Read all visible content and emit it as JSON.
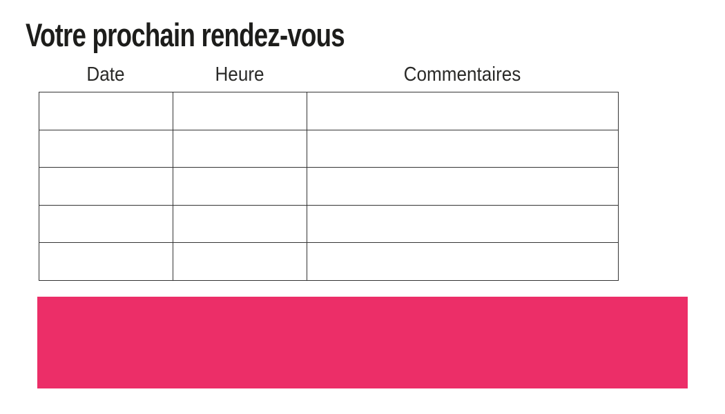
{
  "page": {
    "background_color": "#ffffff"
  },
  "title": {
    "text": "Votre prochain rendez-vous",
    "color": "#1d1d1b"
  },
  "table": {
    "headers": [
      {
        "label": "Date"
      },
      {
        "label": "Heure"
      },
      {
        "label": "Commentaires"
      }
    ],
    "rows": [
      [
        "",
        "",
        ""
      ],
      [
        "",
        "",
        ""
      ],
      [
        "",
        "",
        ""
      ],
      [
        "",
        "",
        ""
      ],
      [
        "",
        "",
        ""
      ]
    ],
    "border_color": "#333333",
    "header_text_color": "#2a2a28"
  },
  "banner": {
    "text": "",
    "color": "#ec2e68"
  }
}
